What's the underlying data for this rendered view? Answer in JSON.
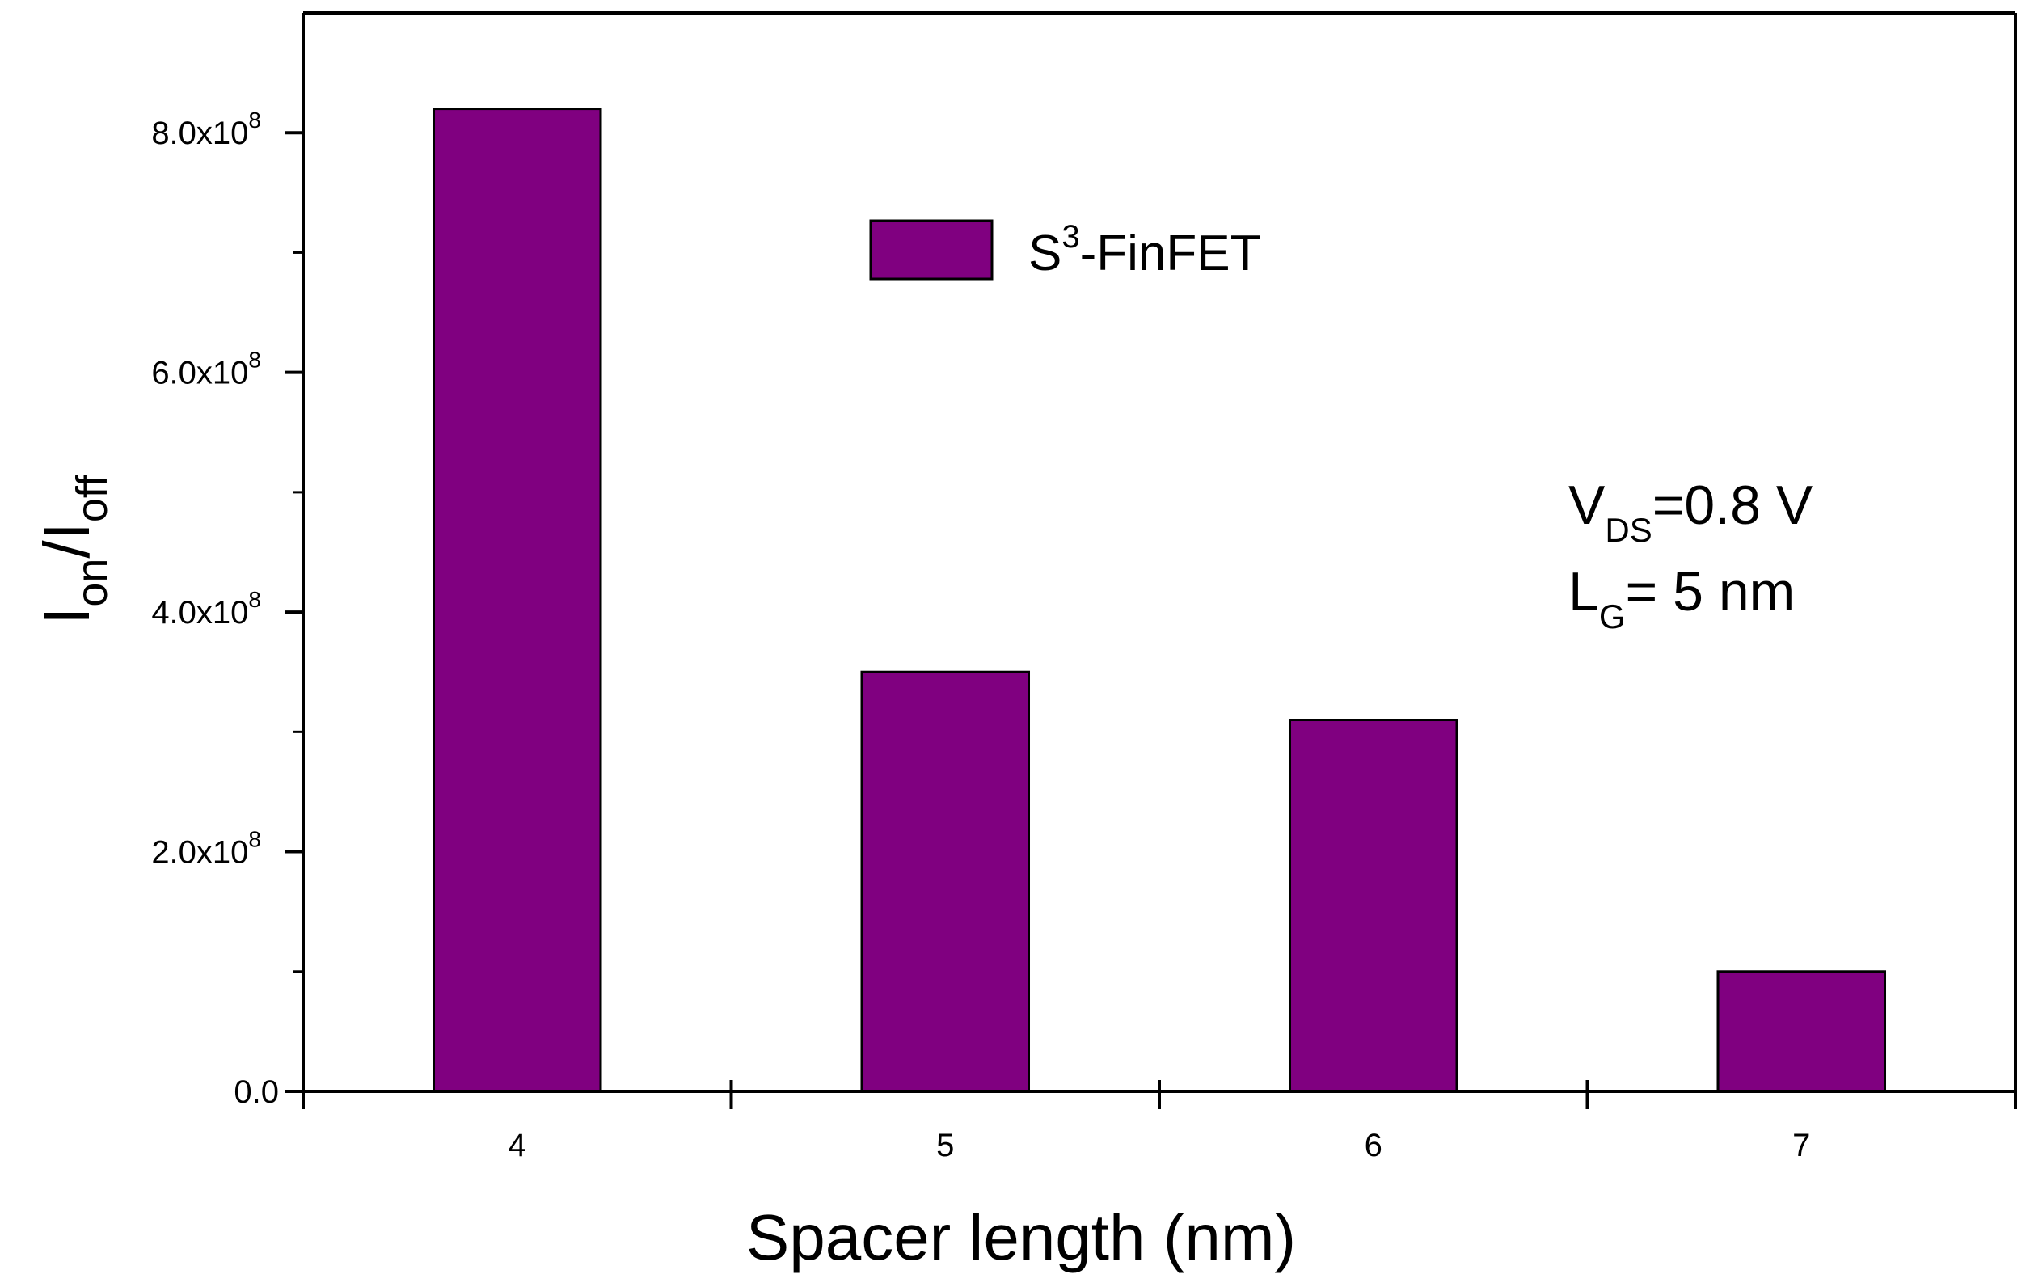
{
  "chart_data": {
    "type": "bar",
    "categories": [
      "4",
      "5",
      "6",
      "7"
    ],
    "series": [
      {
        "name": "S³-FinFET",
        "values": [
          820000000,
          350000000,
          310000000,
          100000000
        ]
      }
    ],
    "xlabel": "Spacer length (nm)",
    "ylabel": {
      "base": "I",
      "sub1": "on",
      "slash": "/I",
      "sub2": "off"
    },
    "ylim": [
      0,
      900000000
    ],
    "yticks": [
      {
        "value": 0,
        "mantissa": "0.0",
        "exp": ""
      },
      {
        "value": 200000000,
        "mantissa": "2.0x10",
        "exp": "8"
      },
      {
        "value": 400000000,
        "mantissa": "4.0x10",
        "exp": "8"
      },
      {
        "value": 600000000,
        "mantissa": "6.0x10",
        "exp": "8"
      },
      {
        "value": 800000000,
        "mantissa": "8.0x10",
        "exp": "8"
      }
    ],
    "legend": {
      "placement": "top-center",
      "label_base": "S",
      "label_sup": "3",
      "label_rest": "-FinFET"
    },
    "annotations": [
      {
        "base": "V",
        "sub": "DS",
        "rest": "=0.8 V"
      },
      {
        "base": "L",
        "sub": "G",
        "rest": "= 5 nm"
      }
    ],
    "colors": {
      "bar": "#800080",
      "outline": "#000000"
    },
    "grid": false
  }
}
